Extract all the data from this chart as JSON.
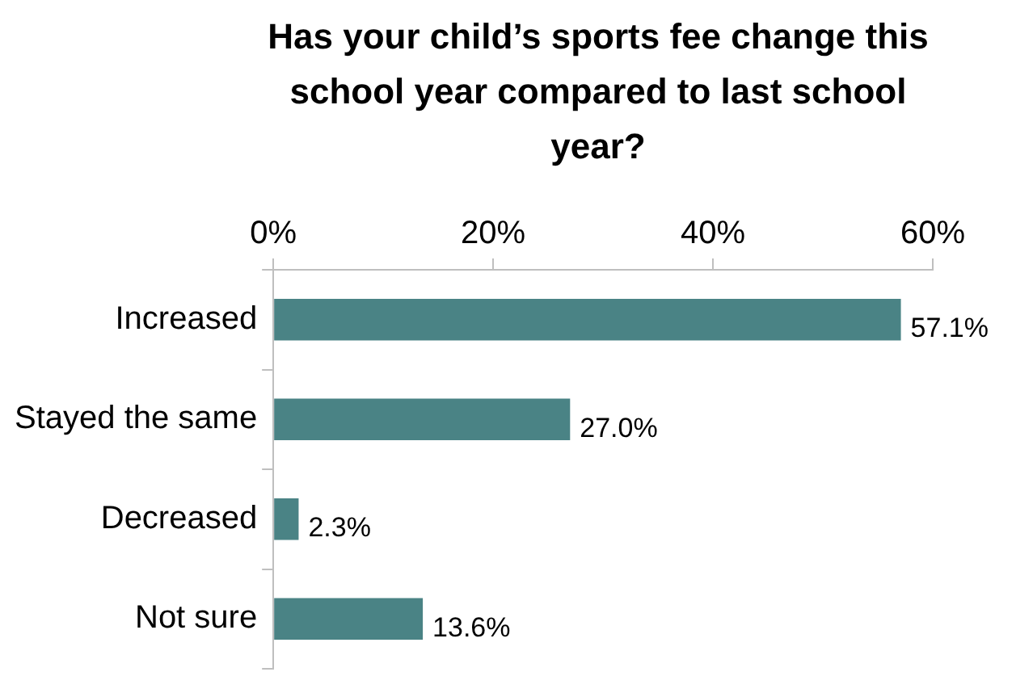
{
  "chart_data": {
    "type": "bar",
    "orientation": "horizontal",
    "title": "Has your child’s sports fee change this school year compared to last school year?",
    "categories": [
      "Increased",
      "Stayed the same",
      "Decreased",
      "Not sure"
    ],
    "values": [
      57.1,
      27.0,
      2.3,
      13.6
    ],
    "value_labels": [
      "57.1%",
      "27.0%",
      "2.3%",
      "13.6%"
    ],
    "color": "#4a8385",
    "xlim": [
      0,
      60
    ],
    "xticks": [
      {
        "value": 0,
        "label": "0%"
      },
      {
        "value": 20,
        "label": "20%"
      },
      {
        "value": 40,
        "label": "40%"
      },
      {
        "value": 60,
        "label": "60%"
      }
    ],
    "grid": false,
    "legend": false
  }
}
